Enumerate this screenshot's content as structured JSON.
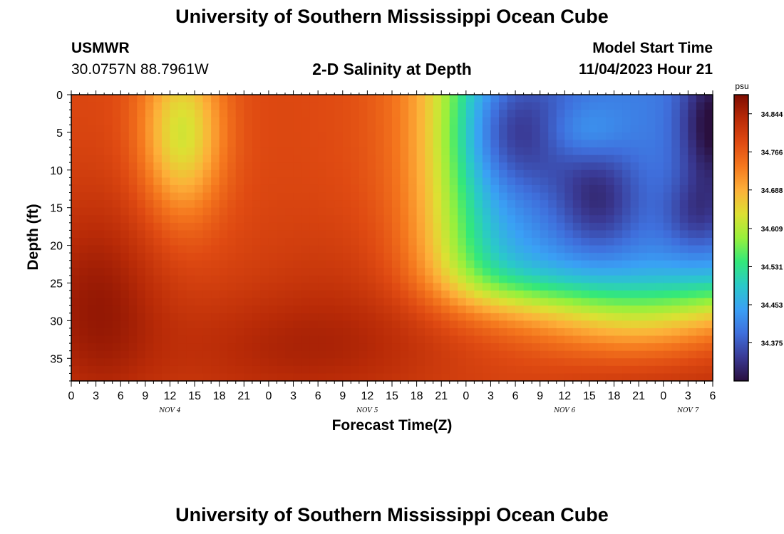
{
  "header": {
    "title": "University of Southern Mississippi Ocean Cube",
    "station": "USMWR",
    "coords": "30.0757N  88.7961W",
    "subtitle": "2-D Salinity at Depth",
    "start_label": "Model Start Time",
    "start_value": "11/04/2023 Hour 21"
  },
  "footer": {
    "title": "University of Southern Mississippi Ocean Cube"
  },
  "chart_data": {
    "type": "heatmap",
    "title": "2-D Salinity at Depth",
    "xlabel": "Forecast Time(Z)",
    "ylabel": "Depth (ft)",
    "x_range_hours": [
      0,
      78
    ],
    "ylim": [
      0,
      38
    ],
    "y_ticks": [
      0,
      5,
      10,
      15,
      20,
      25,
      30,
      35
    ],
    "x_tick_labels": [
      "0",
      "3",
      "6",
      "9",
      "12",
      "15",
      "18",
      "21",
      "0",
      "3",
      "6",
      "9",
      "12",
      "15",
      "18",
      "21",
      "0",
      "3",
      "6",
      "9",
      "12",
      "15",
      "18",
      "21",
      "0",
      "3",
      "6"
    ],
    "date_labels": [
      {
        "label": "NOV 4",
        "hour": 12
      },
      {
        "label": "NOV 5",
        "hour": 36
      },
      {
        "label": "NOV 6",
        "hour": 60
      },
      {
        "label": "NOV 7",
        "hour": 75
      }
    ],
    "colorbar": {
      "unit": "psu",
      "min": 34.297,
      "max": 34.883,
      "ticks": [
        34.844,
        34.766,
        34.688,
        34.609,
        34.531,
        34.453,
        34.375
      ],
      "colors": [
        "#2a0f3e",
        "#3a3a95",
        "#3f6fdc",
        "#3aa0f5",
        "#2ac9c9",
        "#33e87a",
        "#98f03c",
        "#dde033",
        "#fdb039",
        "#f5781e",
        "#df4a12",
        "#b82a07",
        "#7e0d02"
      ]
    },
    "grid": false,
    "legend": "colorbar-right"
  }
}
